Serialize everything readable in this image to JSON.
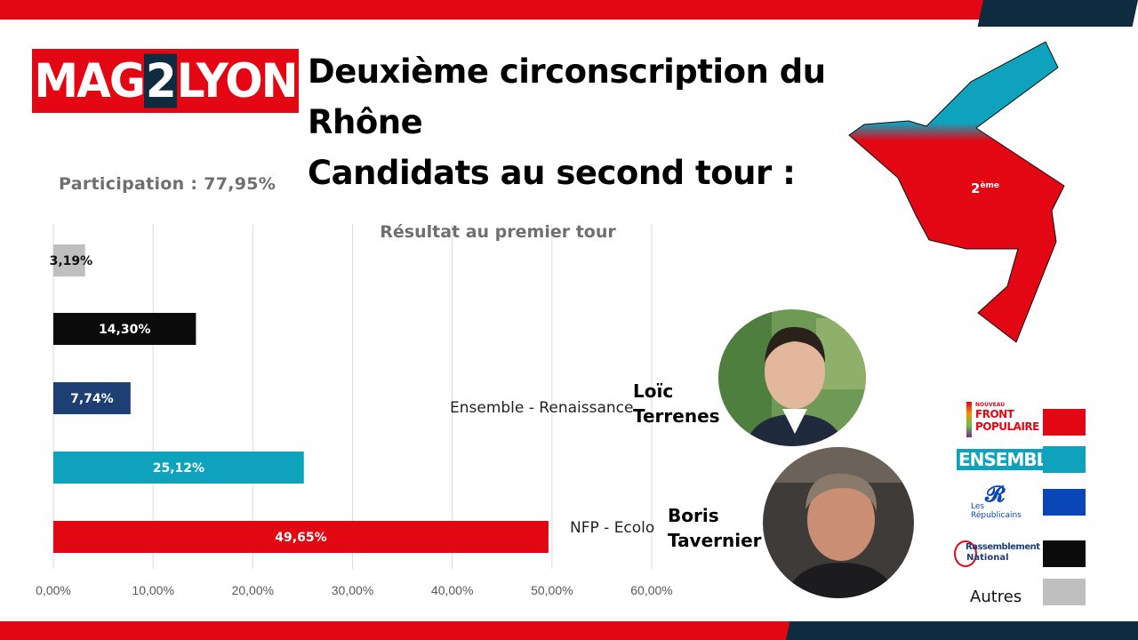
{
  "brand": {
    "prefix": "MAG",
    "number": "2",
    "suffix": "LYON"
  },
  "title": {
    "line1": "Deuxième circonscription du",
    "line2": "Rhône",
    "line3": "Candidats au second tour :"
  },
  "participation": "Participation : 77,95%",
  "map": {
    "label": "2",
    "label_sup": "ème"
  },
  "colors": {
    "red": "#e30613",
    "navy": "#0f2b3f",
    "teal": "#0fa2bd",
    "blue": "#1d3f73",
    "black": "#0b0b0b",
    "grey": "#bfbfbf"
  },
  "chart_data": {
    "type": "bar",
    "orientation": "horizontal",
    "title": "Résultat au premier tour",
    "categories": [
      "Autres",
      "Rassemblement National",
      "Les Républicains",
      "Ensemble",
      "Nouveau Front Populaire"
    ],
    "values": [
      3.19,
      14.3,
      7.74,
      25.12,
      49.65
    ],
    "value_labels": [
      "3,19%",
      "14,30%",
      "7,74%",
      "25,12%",
      "49,65%"
    ],
    "bar_colors": [
      "#bfbfbf",
      "#0b0b0b",
      "#1d3f73",
      "#0fa2bd",
      "#e30613"
    ],
    "xlim": [
      0,
      60
    ],
    "xticks": [
      "0,00%",
      "10,00%",
      "20,00%",
      "30,00%",
      "40,00%",
      "50,00%",
      "60,00%"
    ],
    "grid": true
  },
  "candidates": [
    {
      "party": "Ensemble - Renaissance",
      "first_name": "Loïc",
      "last_name": "Terrenes"
    },
    {
      "party": "NFP - Ecolo",
      "first_name": "Boris",
      "last_name": "Tavernier"
    }
  ],
  "legend": [
    {
      "name": "nfp",
      "line1": "NOUVEAU",
      "line2": "FRONT",
      "line3": "POPULAIRE",
      "color": "#e30613"
    },
    {
      "name": "ensemble",
      "text": "ENSEMBLE",
      "color": "#0fa2bd"
    },
    {
      "name": "lr",
      "line1": "Les",
      "line2": "Républicains",
      "color": "#0b46b8"
    },
    {
      "name": "rn",
      "line1": "Rassemblement",
      "line2": "National",
      "color": "#0b0b0b"
    },
    {
      "name": "autres",
      "text": "Autres",
      "color": "#bfbfbf"
    }
  ]
}
